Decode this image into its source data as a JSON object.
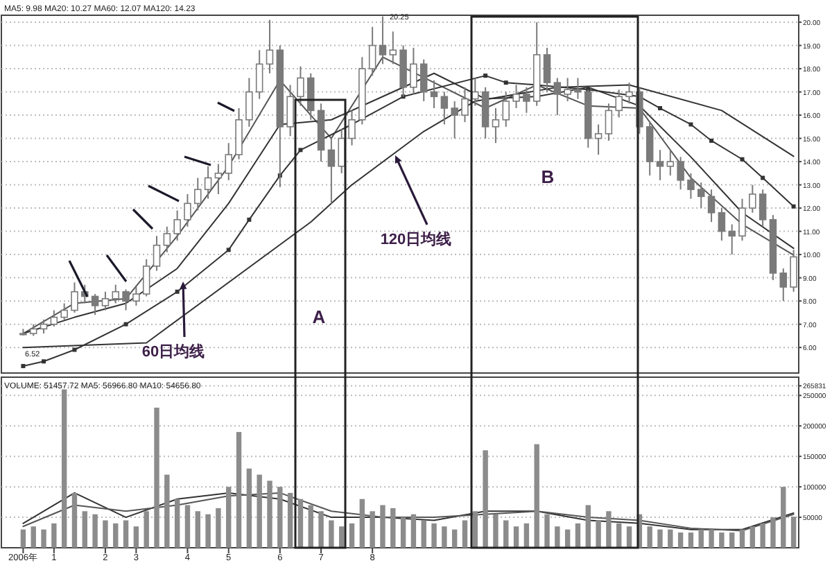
{
  "chart_data": [
    {
      "type": "candlestick",
      "title": "MA5: 9.98 MA20: 10.27 MA60: 12.07 MA120: 14.23",
      "color": "#7a7a7a",
      "categories": [
        null,
        null,
        null,
        null,
        null,
        null,
        null,
        null,
        null,
        null,
        null,
        null,
        null,
        null,
        null,
        null,
        null,
        null,
        null,
        null,
        null,
        null,
        null,
        null,
        null,
        null,
        null,
        null,
        null,
        null,
        null,
        null,
        null,
        null,
        null,
        null,
        null,
        null,
        null,
        null,
        null,
        null,
        null,
        null,
        null,
        null,
        null,
        null,
        null,
        null,
        null,
        null,
        null,
        null,
        null,
        null,
        null,
        null,
        null,
        null,
        null,
        null,
        null,
        null,
        null,
        null,
        null,
        null,
        null,
        null,
        null,
        null,
        null,
        null,
        null,
        null
      ],
      "ohlc": [
        [
          6.55,
          6.8,
          6.52,
          6.6
        ],
        [
          6.6,
          7.0,
          6.5,
          6.8
        ],
        [
          6.8,
          7.2,
          6.6,
          7.0
        ],
        [
          7.0,
          7.6,
          6.9,
          7.3
        ],
        [
          7.3,
          7.9,
          7.2,
          7.6
        ],
        [
          7.6,
          8.8,
          7.5,
          8.4
        ],
        [
          8.4,
          8.7,
          7.9,
          8.2
        ],
        [
          8.2,
          8.3,
          7.4,
          7.8
        ],
        [
          7.8,
          8.4,
          7.6,
          8.1
        ],
        [
          8.1,
          8.7,
          7.9,
          8.4
        ],
        [
          8.4,
          8.5,
          7.6,
          8.0
        ],
        [
          8.0,
          8.6,
          7.8,
          8.3
        ],
        [
          8.3,
          9.8,
          8.2,
          9.5
        ],
        [
          9.5,
          10.8,
          9.3,
          10.4
        ],
        [
          10.4,
          11.2,
          10.1,
          10.9
        ],
        [
          10.9,
          11.9,
          10.6,
          11.5
        ],
        [
          11.5,
          12.6,
          11.2,
          12.2
        ],
        [
          12.2,
          13.3,
          11.9,
          12.8
        ],
        [
          12.8,
          13.8,
          12.4,
          13.3
        ],
        [
          13.3,
          13.9,
          12.6,
          13.5
        ],
        [
          13.5,
          14.8,
          13.2,
          14.3
        ],
        [
          14.3,
          16.3,
          14.1,
          15.8
        ],
        [
          15.8,
          17.6,
          15.5,
          17.0
        ],
        [
          17.0,
          18.8,
          16.7,
          18.2
        ],
        [
          18.2,
          20.1,
          17.8,
          18.8
        ],
        [
          18.8,
          19.0,
          12.9,
          15.5
        ],
        [
          15.5,
          17.3,
          15.1,
          16.8
        ],
        [
          16.8,
          18.1,
          16.4,
          17.6
        ],
        [
          17.6,
          17.8,
          15.8,
          16.2
        ],
        [
          16.2,
          16.5,
          14.0,
          14.5
        ],
        [
          14.5,
          15.0,
          12.2,
          13.8
        ],
        [
          13.8,
          15.4,
          13.5,
          15.0
        ],
        [
          15.0,
          16.2,
          14.7,
          15.8
        ],
        [
          15.8,
          18.5,
          15.6,
          18.0
        ],
        [
          18.0,
          19.8,
          17.7,
          19.0
        ],
        [
          19.0,
          20.25,
          18.2,
          18.6
        ],
        [
          18.6,
          19.6,
          18.2,
          18.8
        ],
        [
          18.8,
          19.0,
          16.8,
          17.2
        ],
        [
          17.2,
          18.9,
          16.9,
          18.2
        ],
        [
          18.2,
          18.4,
          16.6,
          17.0
        ],
        [
          17.0,
          17.5,
          16.3,
          16.8
        ],
        [
          16.8,
          17.0,
          15.6,
          16.3
        ],
        [
          16.3,
          16.6,
          15.0,
          16.0
        ],
        [
          16.0,
          17.2,
          15.7,
          16.7
        ],
        [
          16.7,
          17.6,
          16.4,
          17.0
        ],
        [
          17.0,
          17.2,
          15.0,
          15.5
        ],
        [
          15.5,
          16.3,
          14.8,
          15.8
        ],
        [
          15.8,
          17.0,
          15.5,
          16.6
        ],
        [
          16.6,
          17.3,
          16.3,
          16.9
        ],
        [
          16.9,
          17.2,
          16.1,
          16.6
        ],
        [
          16.6,
          20.0,
          16.4,
          18.6
        ],
        [
          18.6,
          18.9,
          17.0,
          17.4
        ],
        [
          17.4,
          17.6,
          16.0,
          16.9
        ],
        [
          16.9,
          17.6,
          16.6,
          17.1
        ],
        [
          17.1,
          17.6,
          16.7,
          17.0
        ],
        [
          17.0,
          17.1,
          14.6,
          15.0
        ],
        [
          15.0,
          15.6,
          14.3,
          15.2
        ],
        [
          15.2,
          16.5,
          14.9,
          16.2
        ],
        [
          16.2,
          17.1,
          15.9,
          16.8
        ],
        [
          16.8,
          17.4,
          16.5,
          17.0
        ],
        [
          17.0,
          17.2,
          15.2,
          15.5
        ],
        [
          15.5,
          15.7,
          13.4,
          14.0
        ],
        [
          14.0,
          14.5,
          13.2,
          13.8
        ],
        [
          13.8,
          14.5,
          13.4,
          14.0
        ],
        [
          14.0,
          14.2,
          12.8,
          13.2
        ],
        [
          13.2,
          13.5,
          12.4,
          12.8
        ],
        [
          12.8,
          13.1,
          12.0,
          12.5
        ],
        [
          12.5,
          12.8,
          11.4,
          11.8
        ],
        [
          11.8,
          12.0,
          10.6,
          11.0
        ],
        [
          11.0,
          11.3,
          10.0,
          10.8
        ],
        [
          10.8,
          12.4,
          10.6,
          12.0
        ],
        [
          12.0,
          13.0,
          11.8,
          12.6
        ],
        [
          12.6,
          12.8,
          11.2,
          11.5
        ],
        [
          11.5,
          11.7,
          8.9,
          9.2
        ],
        [
          9.2,
          9.4,
          8.0,
          8.6
        ],
        [
          8.6,
          10.2,
          8.4,
          9.9
        ]
      ],
      "series": [
        {
          "type": "line",
          "color": "#555555",
          "values": [
            6.6,
            null,
            null,
            null,
            null,
            7.9,
            null,
            null,
            null,
            null,
            8.1,
            null,
            null,
            null,
            null,
            10.8,
            null,
            null,
            null,
            null,
            13.8,
            null,
            null,
            null,
            null,
            17.5,
            null,
            null,
            null,
            null,
            15.0,
            null,
            null,
            null,
            null,
            18.5,
            null,
            null,
            null,
            null,
            17.4,
            null,
            null,
            null,
            null,
            16.3,
            null,
            null,
            null,
            null,
            17.3,
            null,
            null,
            null,
            null,
            16.4,
            null,
            null,
            null,
            null,
            16.3,
            null,
            null,
            null,
            null,
            13.3,
            null,
            null,
            null,
            null,
            11.3,
            null,
            null,
            null,
            null,
            9.98
          ]
        },
        {
          "type": "line",
          "color": "#333333",
          "values": [
            6.6,
            null,
            null,
            null,
            null,
            7.3,
            null,
            null,
            null,
            null,
            7.9,
            null,
            null,
            null,
            null,
            9.4,
            null,
            null,
            null,
            null,
            12.2,
            null,
            null,
            null,
            null,
            15.6,
            null,
            null,
            null,
            null,
            15.8,
            null,
            null,
            null,
            null,
            16.8,
            null,
            null,
            null,
            null,
            17.8,
            null,
            null,
            null,
            null,
            16.7,
            null,
            null,
            null,
            null,
            16.8,
            null,
            null,
            null,
            null,
            17.2,
            null,
            null,
            null,
            null,
            16.4,
            null,
            null,
            null,
            null,
            14.2,
            null,
            null,
            null,
            null,
            11.8,
            null,
            null,
            null,
            null,
            10.27
          ]
        },
        {
          "type": "line",
          "color": "#333333",
          "marker": "square",
          "values": [
            5.2,
            null,
            5.4,
            null,
            null,
            5.9,
            null,
            null,
            null,
            null,
            7.0,
            null,
            null,
            null,
            null,
            8.4,
            null,
            null,
            null,
            null,
            10.2,
            null,
            11.5,
            null,
            null,
            13.4,
            null,
            14.5,
            null,
            null,
            null,
            null,
            15.6,
            null,
            null,
            null,
            null,
            16.8,
            null,
            null,
            null,
            null,
            null,
            null,
            null,
            17.7,
            null,
            17.4,
            null,
            null,
            17.3,
            null,
            null,
            null,
            null,
            17.1,
            null,
            null,
            null,
            null,
            16.8,
            null,
            16.3,
            null,
            null,
            15.6,
            null,
            14.9,
            null,
            null,
            14.1,
            null,
            13.3,
            null,
            null,
            12.07
          ]
        },
        {
          "type": "line",
          "color": "#333333",
          "values": [
            6.0,
            null,
            null,
            null,
            null,
            null,
            null,
            null,
            null,
            null,
            null,
            null,
            6.2,
            null,
            null,
            null,
            null,
            null,
            null,
            null,
            null,
            null,
            null,
            null,
            null,
            null,
            null,
            null,
            11.4,
            null,
            null,
            null,
            13.0,
            null,
            null,
            null,
            null,
            null,
            null,
            15.3,
            null,
            null,
            null,
            null,
            16.6,
            null,
            null,
            null,
            null,
            null,
            null,
            null,
            17.2,
            null,
            null,
            null,
            null,
            null,
            null,
            17.3,
            null,
            null,
            null,
            null,
            null,
            null,
            null,
            null,
            16.2,
            null,
            null,
            null,
            null,
            null,
            null,
            14.23
          ]
        }
      ],
      "ylim": [
        4.9,
        20.3
      ],
      "yticks": [
        {
          "value": 6,
          "label": "6.00"
        },
        {
          "value": 7,
          "label": "7.00"
        },
        {
          "value": 8,
          "label": "8.00"
        },
        {
          "value": 9,
          "label": "9.00"
        },
        {
          "value": 10,
          "label": "10.00"
        },
        {
          "value": 11,
          "label": "11.00"
        },
        {
          "value": 12,
          "label": "12.00"
        },
        {
          "value": 13,
          "label": "13.00"
        },
        {
          "value": 14,
          "label": "14.00"
        },
        {
          "value": 15,
          "label": "15.00"
        },
        {
          "value": 16,
          "label": "16.00"
        },
        {
          "value": 17,
          "label": "17.00"
        },
        {
          "value": 18,
          "label": "18.00"
        },
        {
          "value": 19,
          "label": "19.00"
        },
        {
          "value": 20,
          "label": "20.00"
        }
      ],
      "grid": "y",
      "annotations": [
        "20.25",
        "6.52",
        "60日均线",
        "120日均线",
        "A",
        "B"
      ]
    },
    {
      "type": "bar",
      "title": "VOLUME: 51457.72 MA5: 56966.80 MA10: 54656.80",
      "color": "#8c8c8c",
      "categories": [
        "2006年",
        null,
        null,
        "1",
        null,
        null,
        null,
        null,
        "2",
        null,
        null,
        "3",
        null,
        null,
        null,
        null,
        "4",
        null,
        null,
        null,
        "5",
        null,
        null,
        null,
        null,
        "6",
        null,
        null,
        null,
        "7",
        null,
        null,
        null,
        null,
        "8",
        null,
        null,
        null,
        null,
        null,
        null,
        null,
        null,
        null,
        null,
        null,
        null,
        null,
        null,
        null,
        null,
        null,
        null,
        null,
        null,
        null,
        null,
        null,
        null,
        null,
        null,
        null,
        null,
        null,
        null,
        null,
        null,
        null,
        null,
        null,
        null,
        null,
        null,
        null,
        null,
        null
      ],
      "values": [
        30000,
        35000,
        30000,
        40000,
        260000,
        90000,
        60000,
        55000,
        45000,
        40000,
        45000,
        35000,
        60000,
        230000,
        120000,
        80000,
        70000,
        60000,
        55000,
        65000,
        100000,
        190000,
        130000,
        120000,
        110000,
        100000,
        90000,
        80000,
        70000,
        60000,
        45000,
        35000,
        40000,
        80000,
        60000,
        70000,
        65000,
        50000,
        55000,
        45000,
        40000,
        35000,
        30000,
        45000,
        60000,
        160000,
        55000,
        45000,
        35000,
        40000,
        170000,
        55000,
        35000,
        30000,
        40000,
        70000,
        45000,
        60000,
        40000,
        35000,
        55000,
        35000,
        30000,
        30000,
        25000,
        25000,
        30000,
        30000,
        25000,
        25000,
        30000,
        35000,
        40000,
        50000,
        100000,
        51000
      ],
      "series": [
        {
          "type": "line",
          "color": "#333333",
          "values": [
            40000,
            null,
            null,
            null,
            null,
            90000,
            null,
            null,
            null,
            null,
            50000,
            null,
            null,
            null,
            null,
            80000,
            null,
            null,
            null,
            null,
            90000,
            null,
            null,
            null,
            null,
            80000,
            null,
            null,
            null,
            null,
            50000,
            null,
            null,
            null,
            null,
            50000,
            null,
            null,
            null,
            null,
            45000,
            null,
            null,
            null,
            null,
            60000,
            null,
            null,
            null,
            null,
            60000,
            null,
            null,
            null,
            null,
            45000,
            null,
            null,
            null,
            null,
            40000,
            null,
            null,
            null,
            null,
            30000,
            null,
            null,
            null,
            null,
            30000,
            null,
            null,
            null,
            null,
            57000
          ]
        },
        {
          "type": "line",
          "color": "#555555",
          "values": [
            35000,
            null,
            null,
            null,
            null,
            70000,
            null,
            null,
            null,
            null,
            60000,
            null,
            null,
            null,
            null,
            70000,
            null,
            null,
            null,
            null,
            85000,
            null,
            null,
            null,
            null,
            90000,
            null,
            null,
            null,
            null,
            60000,
            null,
            null,
            null,
            null,
            50000,
            null,
            null,
            null,
            null,
            50000,
            null,
            null,
            null,
            null,
            55000,
            null,
            null,
            null,
            null,
            60000,
            null,
            null,
            null,
            null,
            50000,
            null,
            null,
            null,
            null,
            45000,
            null,
            null,
            null,
            null,
            32000,
            null,
            null,
            null,
            null,
            28000,
            null,
            null,
            null,
            null,
            55000
          ]
        }
      ],
      "ylim": [
        0,
        280000
      ],
      "yticks": [
        50000,
        100000,
        150000,
        200000,
        250000,
        265831
      ],
      "grid": "y"
    }
  ]
}
